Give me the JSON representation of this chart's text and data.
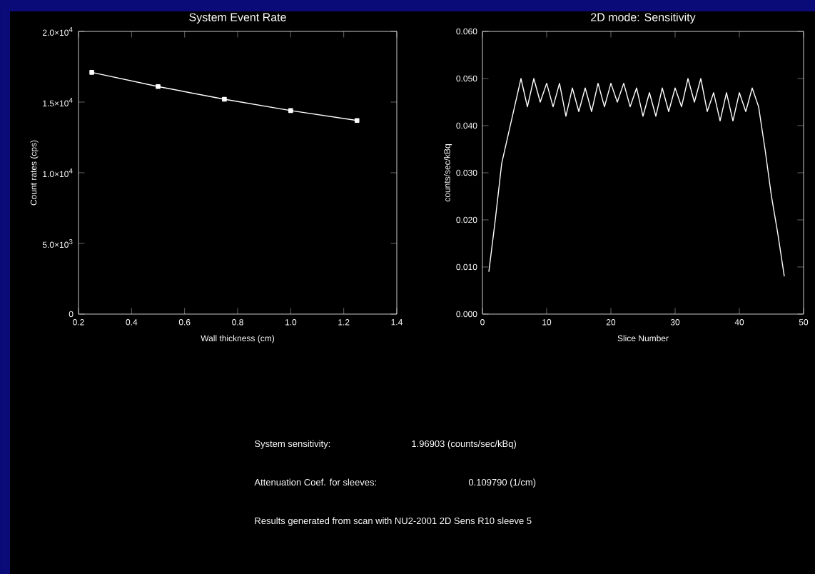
{
  "chart_data": [
    {
      "type": "line",
      "title": "System Event Rate",
      "xlabel": "Wall thickness (cm)",
      "ylabel": "Count rates (cps)",
      "marker": "square",
      "series": [
        {
          "color": "#ffffff",
          "x": [
            0.25,
            0.5,
            0.75,
            1.0,
            1.25
          ],
          "values": [
            17100,
            16100,
            15200,
            14400,
            13700
          ]
        }
      ],
      "xlim": [
        0.2,
        1.4
      ],
      "xticks": [
        0.2,
        0.4,
        0.6,
        0.8,
        {
          "value": 1,
          "label": "1.0"
        },
        1.2,
        1.4
      ],
      "ylim": [
        0,
        20000
      ],
      "yticks": [
        {
          "value": 0,
          "label": "0"
        },
        {
          "value": 5000,
          "label": "5.0×10$^{3}$"
        },
        {
          "value": 10000,
          "label": "1.0×10$^{4}$"
        },
        {
          "value": 15000,
          "label": "1.5×10$^{4}$"
        },
        {
          "value": 20000,
          "label": "2.0×10$^{4}$"
        }
      ]
    },
    {
      "type": "line",
      "title": "2D mode: Sensitivity",
      "xlabel": "Slice Number",
      "ylabel": "counts/sec/kBq",
      "marker": "none",
      "series": [
        {
          "color": "#ffffff",
          "x": [
            1,
            2,
            3,
            4,
            5,
            6,
            7,
            8,
            9,
            10,
            11,
            12,
            13,
            14,
            15,
            16,
            17,
            18,
            19,
            20,
            21,
            22,
            23,
            24,
            25,
            26,
            27,
            28,
            29,
            30,
            31,
            32,
            33,
            34,
            35,
            36,
            37,
            38,
            39,
            40,
            41,
            42,
            43,
            44,
            45,
            46,
            47
          ],
          "values": [
            0.009,
            0.02,
            0.032,
            0.038,
            0.044,
            0.05,
            0.044,
            0.05,
            0.045,
            0.049,
            0.044,
            0.049,
            0.042,
            0.048,
            0.043,
            0.048,
            0.043,
            0.049,
            0.044,
            0.049,
            0.045,
            0.049,
            0.044,
            0.048,
            0.042,
            0.047,
            0.042,
            0.048,
            0.043,
            0.048,
            0.044,
            0.05,
            0.045,
            0.05,
            0.043,
            0.047,
            0.041,
            0.047,
            0.041,
            0.047,
            0.043,
            0.048,
            0.044,
            0.035,
            0.025,
            0.017,
            0.008
          ]
        }
      ],
      "xlim": [
        0,
        50
      ],
      "xticks": [
        0,
        10,
        20,
        30,
        40,
        50
      ],
      "ylim": [
        0,
        0.06
      ],
      "yticks": [
        {
          "value": 0,
          "label": "0.000"
        },
        {
          "value": 0.01,
          "label": "0.010"
        },
        {
          "value": 0.02,
          "label": "0.020"
        },
        {
          "value": 0.03,
          "label": "0.030"
        },
        {
          "value": 0.04,
          "label": "0.040"
        },
        {
          "value": 0.05,
          "label": "0.050"
        },
        {
          "value": 0.06,
          "label": "0.060"
        }
      ]
    },
    {
      "type": "other",
      "annotations": [
        "System sensitivity:",
        "1.96903 (counts/sec/kBq)",
        "Attenuation Coef. for sleeves:",
        "0.109790 (1/cm)",
        "Results generated from scan with NU2-2001 2D Sens R10 sleeve 5"
      ]
    }
  ]
}
